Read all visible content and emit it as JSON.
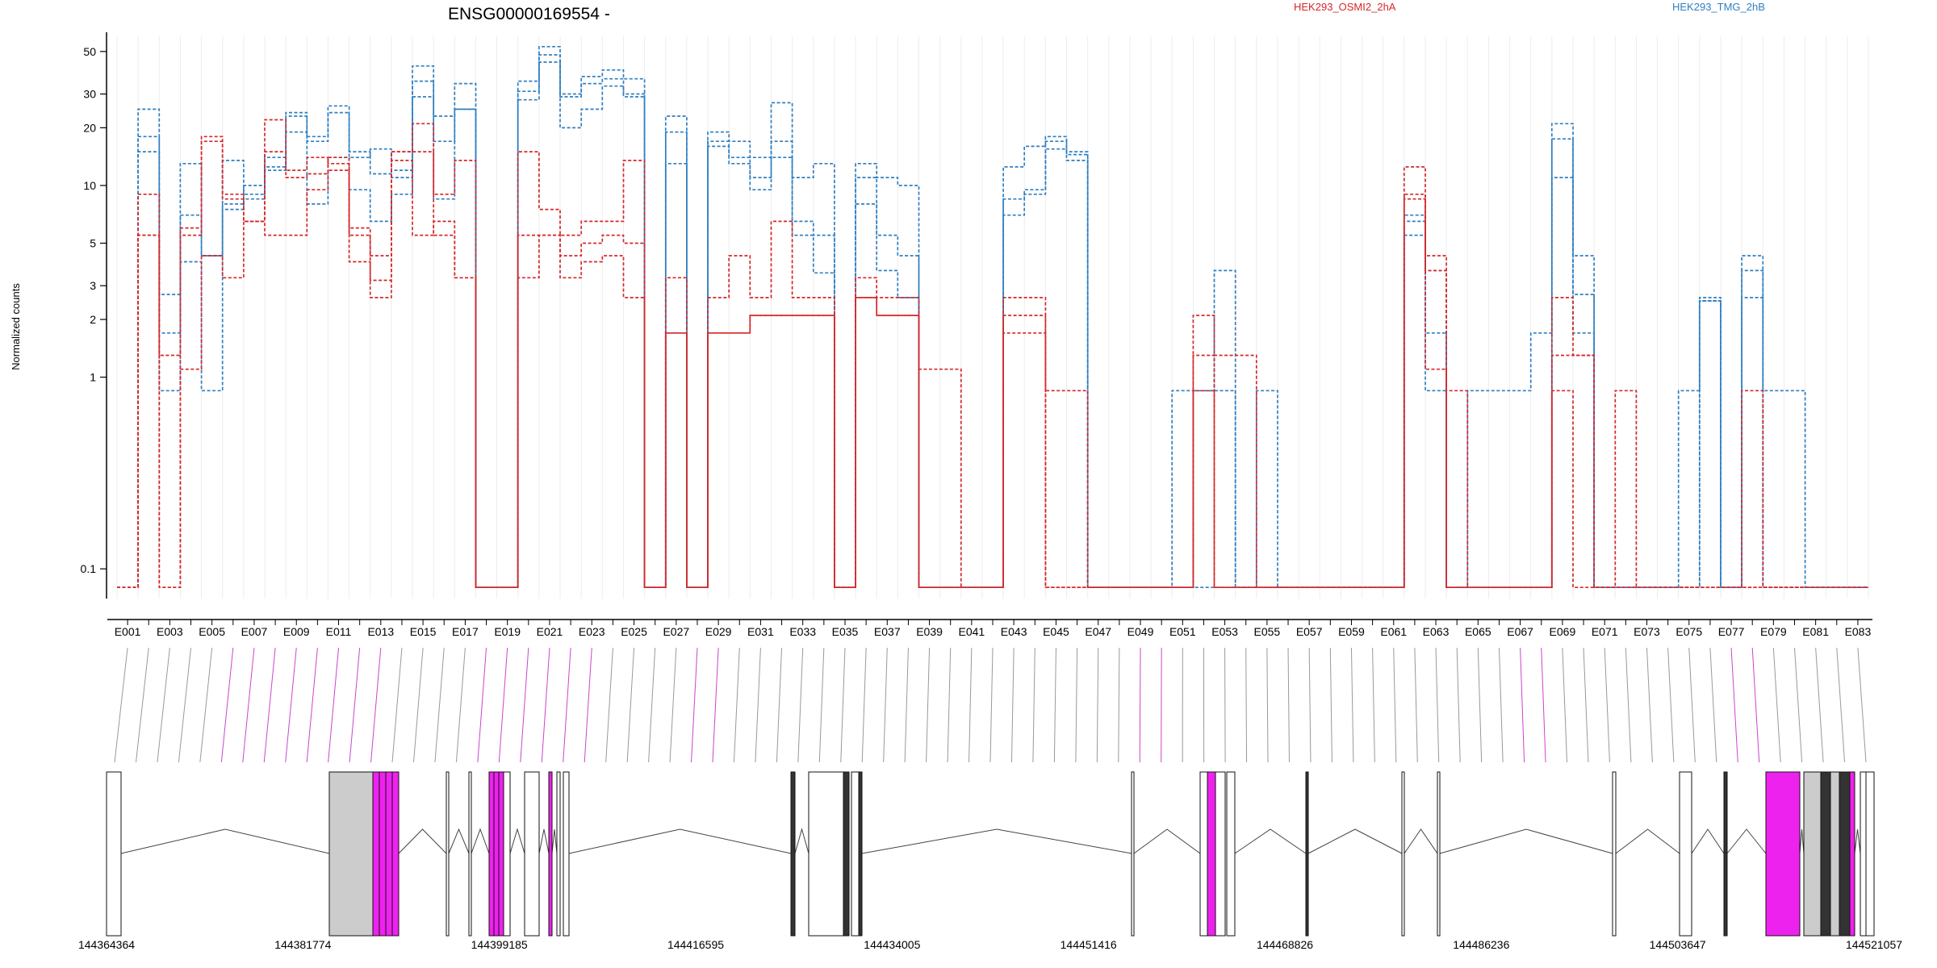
{
  "chart_data": {
    "type": "line",
    "title": "ENSG00000169554 -",
    "ylabel": "Normalized counts",
    "y_scale": "log",
    "ylim": [
      0.07,
      60
    ],
    "y_ticks": [
      0.1,
      1,
      2,
      3,
      5,
      10,
      20,
      30,
      50
    ],
    "y_tick_labels": [
      "0.1",
      "1",
      "2",
      "3",
      "5",
      "10",
      "20",
      "30",
      "50"
    ],
    "exon_labels_shown": [
      "E001",
      "E003",
      "E005",
      "E007",
      "E009",
      "E011",
      "E013",
      "E015",
      "E017",
      "E019",
      "E021",
      "E023",
      "E025",
      "E027",
      "E029",
      "E031",
      "E033",
      "E035",
      "E037",
      "E039",
      "E041",
      "E043",
      "E045",
      "E047",
      "E049",
      "E051",
      "E053",
      "E055",
      "E057",
      "E059",
      "E061",
      "E063",
      "E065",
      "E067",
      "E069",
      "E071",
      "E073",
      "E075",
      "E077",
      "E079",
      "E081",
      "E083"
    ],
    "exon_count": 83,
    "legend": [
      {
        "name": "HEK293_OSMI2_2hA",
        "color": "#d62728"
      },
      {
        "name": "HEK293_TMG_2hB",
        "color": "#2f7fc1"
      }
    ],
    "series": [
      {
        "group": "HEK293_TMG_2hB",
        "color": "#2f7fc1",
        "values": [
          0.08,
          25,
          2.7,
          13,
          4.3,
          13.5,
          9,
          12,
          24,
          18,
          26,
          14,
          15.5,
          12,
          42,
          23,
          34,
          0.08,
          0.08,
          35,
          53,
          30,
          37,
          40,
          36,
          0.08,
          23,
          0.08,
          19,
          17,
          14,
          27,
          11,
          13,
          0.08,
          13,
          11,
          10,
          0.08,
          0.08,
          0.08,
          0.08,
          12.5,
          16,
          18,
          15,
          0.08,
          0.08,
          0.08,
          0.08,
          0.85,
          0.85,
          3.6,
          0.08,
          0.85,
          0.08,
          0.08,
          0.08,
          0.08,
          0.08,
          0.08,
          7,
          3.6,
          0.08,
          0.85,
          0.85,
          0.85,
          1.7,
          21,
          4.3,
          0.08,
          0.08,
          0.08,
          0.08,
          0.85,
          2.6,
          0.08,
          4.3,
          0.85,
          0.85,
          0.08,
          0.08,
          0.08
        ]
      },
      {
        "group": "HEK293_TMG_2hB",
        "color": "#2f7fc1",
        "values": [
          0.08,
          18,
          1.7,
          7,
          4.3,
          8,
          8.5,
          14,
          23,
          17,
          24,
          15,
          11.5,
          11,
          35,
          17,
          25,
          0.08,
          0.08,
          31,
          48,
          29,
          34,
          36,
          30,
          0.08,
          13,
          0.08,
          17,
          14,
          11,
          17,
          6.5,
          5.5,
          0.08,
          11,
          5.5,
          4.3,
          0.08,
          0.08,
          0.08,
          0.08,
          8.5,
          9.5,
          17,
          14.5,
          0.08,
          0.08,
          0.08,
          0.08,
          0.08,
          0.85,
          0.85,
          0.08,
          0.08,
          0.08,
          0.08,
          0.08,
          0.08,
          0.08,
          0.08,
          6.5,
          1.7,
          0.08,
          0.08,
          0.08,
          0.08,
          0.08,
          17.5,
          2.7,
          0.08,
          0.08,
          0.08,
          0.08,
          0.08,
          2.5,
          0.08,
          3.6,
          0.08,
          0.08,
          0.08,
          0.08,
          0.08
        ]
      },
      {
        "group": "HEK293_TMG_2hB",
        "color": "#2f7fc1",
        "values": [
          0.08,
          15,
          0.85,
          4,
          0.85,
          7.5,
          10,
          12.5,
          19,
          8,
          14,
          9.5,
          6.5,
          9,
          29,
          8.5,
          25,
          0.08,
          0.08,
          28,
          44,
          20,
          25,
          33,
          29,
          0.08,
          19,
          0.08,
          16,
          13,
          9.5,
          14,
          5.5,
          3.5,
          0.08,
          8,
          3.6,
          2.6,
          0.08,
          0.08,
          0.08,
          0.08,
          7,
          9,
          15.5,
          13.5,
          0.08,
          0.08,
          0.08,
          0.08,
          0.08,
          0.08,
          0.08,
          0.08,
          0.08,
          0.08,
          0.08,
          0.08,
          0.08,
          0.08,
          0.08,
          5.5,
          0.85,
          0.08,
          0.08,
          0.08,
          0.08,
          0.08,
          11,
          1.7,
          0.08,
          0.08,
          0.08,
          0.08,
          0.08,
          2.5,
          0.08,
          2.6,
          0.08,
          0.08,
          0.08,
          0.08,
          0.08
        ]
      },
      {
        "group": "HEK293_OSMI2_2hA",
        "color": "#d62728",
        "values": [
          0.08,
          9,
          1.3,
          6,
          18,
          9,
          6.5,
          22,
          12,
          14,
          13,
          6,
          4.3,
          15,
          21,
          9,
          13.5,
          0.08,
          0.08,
          15,
          7.5,
          5.5,
          6.5,
          6.5,
          13.5,
          0.08,
          3.3,
          0.08,
          2.6,
          4.3,
          2.6,
          6.5,
          2.6,
          2.6,
          0.08,
          3.3,
          2.6,
          2.6,
          1.1,
          1.1,
          0.08,
          0.08,
          2.6,
          2.6,
          0.85,
          0.85,
          0.08,
          0.08,
          0.08,
          0.08,
          0.08,
          2.1,
          1.3,
          1.3,
          0.08,
          0.08,
          0.08,
          0.08,
          0.08,
          0.08,
          0.08,
          12.5,
          4.3,
          0.85,
          0.08,
          0.08,
          0.08,
          0.08,
          2.6,
          1.3,
          0.08,
          0.85,
          0.08,
          0.08,
          0.08,
          0.08,
          0.08,
          0.85,
          0.08,
          0.08,
          0.08,
          0.08,
          0.08
        ]
      },
      {
        "group": "HEK293_OSMI2_2hA",
        "color": "#d62728",
        "values": [
          0.08,
          5.5,
          0.08,
          5.5,
          17,
          8.5,
          6.5,
          15,
          11,
          11.5,
          14,
          5.5,
          3.2,
          15,
          15,
          5.5,
          3.3,
          0.08,
          0.08,
          5.5,
          5.5,
          4.3,
          5,
          5.5,
          5,
          0.08,
          1.7,
          0.08,
          1.7,
          1.7,
          2.1,
          2.1,
          2.1,
          2.1,
          0.08,
          2.6,
          2.1,
          2.1,
          0.08,
          0.08,
          0.08,
          0.08,
          2.1,
          2.1,
          0.08,
          0.08,
          0.08,
          0.08,
          0.08,
          0.08,
          0.08,
          1.3,
          0.08,
          0.08,
          0.08,
          0.08,
          0.08,
          0.08,
          0.08,
          0.08,
          0.08,
          9,
          3.6,
          0.08,
          0.08,
          0.08,
          0.08,
          0.08,
          1.3,
          1.3,
          0.08,
          0.08,
          0.08,
          0.08,
          0.08,
          0.08,
          0.08,
          0.08,
          0.08,
          0.08,
          0.08,
          0.08,
          0.08
        ]
      },
      {
        "group": "HEK293_OSMI2_2hA",
        "color": "#d62728",
        "values": [
          0.08,
          5.5,
          0.08,
          1.1,
          4.3,
          3.3,
          6.5,
          5.5,
          5.5,
          9.5,
          12,
          4,
          2.6,
          13.5,
          5.5,
          6.5,
          3.3,
          0.08,
          0.08,
          3.3,
          5.5,
          3.3,
          4,
          4.3,
          2.6,
          0.08,
          1.7,
          0.08,
          1.7,
          1.7,
          2.1,
          2.1,
          2.1,
          2.1,
          0.08,
          2.6,
          2.1,
          2.1,
          0.08,
          0.08,
          0.08,
          0.08,
          1.7,
          1.7,
          0.08,
          0.08,
          0.08,
          0.08,
          0.08,
          0.08,
          0.08,
          0.85,
          0.08,
          0.08,
          0.08,
          0.08,
          0.08,
          0.08,
          0.08,
          0.08,
          0.08,
          8.5,
          1.1,
          0.08,
          0.08,
          0.08,
          0.08,
          0.08,
          0.85,
          0.08,
          0.08,
          0.08,
          0.08,
          0.08,
          0.08,
          0.08,
          0.08,
          0.08,
          0.08,
          0.08,
          0.08,
          0.08,
          0.08
        ]
      }
    ],
    "gene_model": {
      "genomic_ticks": [
        "144364364",
        "144381774",
        "144399185",
        "144416595",
        "144434005",
        "144451416",
        "144468826",
        "144486236",
        "144503647",
        "144521057"
      ]
    }
  }
}
